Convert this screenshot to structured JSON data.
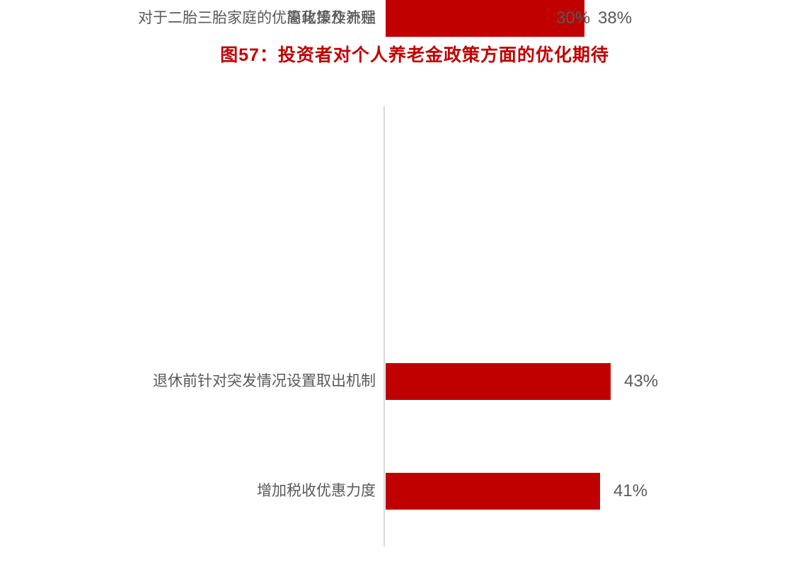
{
  "title": "图57：投资者对个人养老金政策方面的优化期待",
  "colors": {
    "bar": "#c00000",
    "title": "#c00000",
    "label": "#595959",
    "axis": "#d9d9d9",
    "background": "#ffffff"
  },
  "chart_data": {
    "type": "bar",
    "orientation": "horizontal",
    "title": "图57：投资者对个人养老金政策方面的优化期待",
    "categories": [
      "退休前针对突发情况设置取出机制",
      "增加税收优惠力度",
      "对于二胎三胎家庭的优惠政策及补贴",
      "简化操作流程"
    ],
    "values": [
      43,
      41,
      38,
      30
    ],
    "value_labels": [
      "43%",
      "41%",
      "38%",
      "30%"
    ],
    "unit": "%",
    "grid": false,
    "legend": false,
    "x_axis_ticks_visible": false,
    "value_labels_position": "end-of-bar",
    "sort_order": "descending"
  }
}
